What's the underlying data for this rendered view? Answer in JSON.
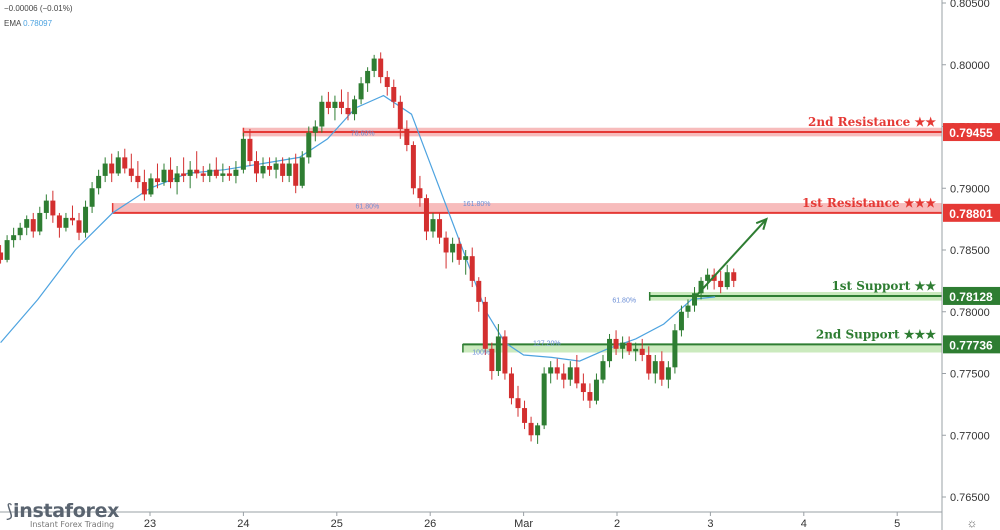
{
  "header": {
    "change_text": "−0.00006 (−0.01%)",
    "ema_label": "EMA",
    "ema_value": "0.78097"
  },
  "logo": {
    "name": "instaforex",
    "tagline": "Instant Forex Trading"
  },
  "settings_icon": "gear-icon",
  "colors": {
    "bull": "#26a69a",
    "bull_candle": "#2e7d32",
    "bear": "#d32f2f",
    "ema": "#4da3e0",
    "resistance_fill": "#f4a6a6",
    "resistance_line": "#e53935",
    "support_fill": "#b9e3a8",
    "support_line": "#2e7d32",
    "fib_text": "#6b8ed6"
  },
  "chart_data": {
    "type": "candlestick",
    "symbol_ema_period_unprinted": null,
    "y_axis": {
      "min": 0.765,
      "max": 0.805,
      "ticks": [
        "0.80500",
        "0.80000",
        "0.79500",
        "0.79000",
        "0.78500",
        "0.78000",
        "0.77500",
        "0.77000",
        "0.76500"
      ]
    },
    "x_axis": {
      "ticks": [
        "23",
        "24",
        "25",
        "26",
        "Mar",
        "2",
        "3",
        "4",
        "5"
      ],
      "tick_positions_days": [
        0,
        1,
        2,
        3,
        4,
        5,
        6,
        7,
        8
      ]
    },
    "levels": [
      {
        "label": "2nd Resistance ★★",
        "value": "0.79455",
        "price": 0.79455,
        "kind": "resistance",
        "zone": [
          0.7942,
          0.7949
        ],
        "start_day": 1.0
      },
      {
        "label": "1st Resistance ★★★",
        "value": "0.78801",
        "price": 0.78801,
        "kind": "resistance",
        "zone": [
          0.788,
          0.7888
        ],
        "start_day": -0.4
      },
      {
        "label": "1st Support ★★",
        "value": "0.78128",
        "price": 0.78128,
        "kind": "support",
        "zone": [
          0.7809,
          0.7816
        ],
        "start_day": 5.35
      },
      {
        "label": "2nd Support ★★★",
        "value": "0.77736",
        "price": 0.77736,
        "kind": "support",
        "zone": [
          0.7767,
          0.7774
        ],
        "start_day": 3.35
      }
    ],
    "fib_labels": [
      {
        "text": "78.60%",
        "day": 2.15,
        "price": 0.7945
      },
      {
        "text": "61.80%",
        "day": 2.2,
        "price": 0.7886
      },
      {
        "text": "161.80%",
        "day": 3.35,
        "price": 0.7888
      },
      {
        "text": "61.80%",
        "day": 4.95,
        "price": 0.781
      },
      {
        "text": "127.20%",
        "day": 4.1,
        "price": 0.7775
      },
      {
        "text": "100%",
        "day": 3.45,
        "price": 0.7768
      }
    ],
    "arrow": {
      "from": {
        "day": 5.85,
        "price": 0.7813
      },
      "to": {
        "day": 6.6,
        "price": 0.7875
      }
    },
    "ema": [
      [
        -1.6,
        0.7775
      ],
      [
        -1.2,
        0.781
      ],
      [
        -0.8,
        0.785
      ],
      [
        -0.4,
        0.788
      ],
      [
        0,
        0.79
      ],
      [
        0.4,
        0.7912
      ],
      [
        0.8,
        0.7915
      ],
      [
        1.2,
        0.792
      ],
      [
        1.6,
        0.7925
      ],
      [
        1.9,
        0.794
      ],
      [
        2.2,
        0.7965
      ],
      [
        2.5,
        0.7975
      ],
      [
        2.8,
        0.796
      ],
      [
        3.0,
        0.792
      ],
      [
        3.2,
        0.788
      ],
      [
        3.4,
        0.784
      ],
      [
        3.6,
        0.78
      ],
      [
        3.8,
        0.7775
      ],
      [
        4.0,
        0.7765
      ],
      [
        4.3,
        0.7763
      ],
      [
        4.6,
        0.776
      ],
      [
        4.9,
        0.777
      ],
      [
        5.2,
        0.7778
      ],
      [
        5.5,
        0.779
      ],
      [
        5.8,
        0.781
      ],
      [
        6.05,
        0.7812
      ]
    ],
    "candles": [
      [
        -1.6,
        0.7848,
        0.7854,
        0.7839,
        0.7842
      ],
      [
        -1.53,
        0.7842,
        0.7862,
        0.784,
        0.7858
      ],
      [
        -1.46,
        0.7858,
        0.7868,
        0.7852,
        0.7862
      ],
      [
        -1.39,
        0.7862,
        0.7872,
        0.7858,
        0.7868
      ],
      [
        -1.32,
        0.7868,
        0.7878,
        0.7862,
        0.7875
      ],
      [
        -1.25,
        0.7875,
        0.788,
        0.786,
        0.7865
      ],
      [
        -1.18,
        0.7865,
        0.7885,
        0.7862,
        0.788
      ],
      [
        -1.11,
        0.788,
        0.7895,
        0.7875,
        0.789
      ],
      [
        -1.04,
        0.789,
        0.7898,
        0.7872,
        0.7878
      ],
      [
        -0.97,
        0.7878,
        0.788,
        0.786,
        0.7868
      ],
      [
        -0.9,
        0.7868,
        0.788,
        0.7865,
        0.7876
      ],
      [
        -0.83,
        0.7876,
        0.7886,
        0.787,
        0.7874
      ],
      [
        -0.76,
        0.7874,
        0.788,
        0.7858,
        0.7864
      ],
      [
        -0.69,
        0.7864,
        0.789,
        0.786,
        0.7885
      ],
      [
        -0.62,
        0.7885,
        0.7905,
        0.788,
        0.79
      ],
      [
        -0.55,
        0.79,
        0.7915,
        0.7895,
        0.791
      ],
      [
        -0.48,
        0.791,
        0.7925,
        0.7905,
        0.792
      ],
      [
        -0.41,
        0.792,
        0.7928,
        0.7905,
        0.7912
      ],
      [
        -0.34,
        0.7912,
        0.793,
        0.791,
        0.7925
      ],
      [
        -0.27,
        0.7925,
        0.7932,
        0.7912,
        0.7916
      ],
      [
        -0.2,
        0.7916,
        0.7928,
        0.7905,
        0.791
      ],
      [
        -0.13,
        0.791,
        0.7922,
        0.79,
        0.7905
      ],
      [
        -0.06,
        0.7905,
        0.7915,
        0.789,
        0.7895
      ],
      [
        0.01,
        0.7895,
        0.7912,
        0.7893,
        0.7908
      ],
      [
        0.08,
        0.7908,
        0.792,
        0.79,
        0.7905
      ],
      [
        0.15,
        0.7905,
        0.792,
        0.7902,
        0.7915
      ],
      [
        0.22,
        0.7915,
        0.7925,
        0.79,
        0.7905
      ],
      [
        0.29,
        0.7905,
        0.7918,
        0.7895,
        0.7912
      ],
      [
        0.36,
        0.7912,
        0.7925,
        0.7905,
        0.791
      ],
      [
        0.43,
        0.791,
        0.7922,
        0.79,
        0.7915
      ],
      [
        0.5,
        0.7915,
        0.793,
        0.7908,
        0.7912
      ],
      [
        0.57,
        0.7912,
        0.7918,
        0.7905,
        0.791
      ],
      [
        0.64,
        0.791,
        0.792,
        0.7905,
        0.7915
      ],
      [
        0.71,
        0.7915,
        0.7925,
        0.7908,
        0.791
      ],
      [
        0.78,
        0.791,
        0.792,
        0.7905,
        0.7912
      ],
      [
        0.85,
        0.7912,
        0.7918,
        0.7906,
        0.791
      ],
      [
        0.92,
        0.791,
        0.7922,
        0.7904,
        0.7915
      ],
      [
        1.0,
        0.7915,
        0.7945,
        0.7912,
        0.794
      ],
      [
        1.07,
        0.794,
        0.7948,
        0.7918,
        0.7922
      ],
      [
        1.14,
        0.7922,
        0.793,
        0.7905,
        0.7912
      ],
      [
        1.21,
        0.7912,
        0.7925,
        0.7908,
        0.7918
      ],
      [
        1.28,
        0.7918,
        0.7925,
        0.791,
        0.7915
      ],
      [
        1.35,
        0.7915,
        0.7925,
        0.7908,
        0.792
      ],
      [
        1.42,
        0.792,
        0.7925,
        0.7905,
        0.791
      ],
      [
        1.49,
        0.791,
        0.7925,
        0.7905,
        0.792
      ],
      [
        1.56,
        0.792,
        0.7928,
        0.7896,
        0.7902
      ],
      [
        1.63,
        0.7902,
        0.793,
        0.79,
        0.7925
      ],
      [
        1.7,
        0.7925,
        0.795,
        0.792,
        0.7945
      ],
      [
        1.77,
        0.7945,
        0.7955,
        0.7938,
        0.795
      ],
      [
        1.84,
        0.795,
        0.7975,
        0.7945,
        0.797
      ],
      [
        1.91,
        0.797,
        0.7978,
        0.796,
        0.7965
      ],
      [
        1.98,
        0.7965,
        0.7975,
        0.7955,
        0.797
      ],
      [
        2.05,
        0.797,
        0.798,
        0.796,
        0.7965
      ],
      [
        2.12,
        0.7965,
        0.7978,
        0.7955,
        0.796
      ],
      [
        2.19,
        0.796,
        0.7975,
        0.7955,
        0.7972
      ],
      [
        2.26,
        0.7972,
        0.799,
        0.7968,
        0.7985
      ],
      [
        2.33,
        0.7985,
        0.7998,
        0.7978,
        0.7995
      ],
      [
        2.4,
        0.7995,
        0.8008,
        0.799,
        0.8005
      ],
      [
        2.47,
        0.8005,
        0.801,
        0.7985,
        0.799
      ],
      [
        2.54,
        0.799,
        0.7995,
        0.7975,
        0.7982
      ],
      [
        2.61,
        0.7982,
        0.7988,
        0.7965,
        0.797
      ],
      [
        2.68,
        0.797,
        0.7975,
        0.794,
        0.7948
      ],
      [
        2.75,
        0.7948,
        0.7955,
        0.793,
        0.7935
      ],
      [
        2.82,
        0.7935,
        0.7938,
        0.7895,
        0.79
      ],
      [
        2.89,
        0.79,
        0.791,
        0.7885,
        0.7892
      ],
      [
        2.96,
        0.7892,
        0.7895,
        0.7858,
        0.7865
      ],
      [
        3.03,
        0.7865,
        0.788,
        0.786,
        0.7875
      ],
      [
        3.1,
        0.7875,
        0.788,
        0.7855,
        0.786
      ],
      [
        3.17,
        0.786,
        0.7865,
        0.7835,
        0.7848
      ],
      [
        3.24,
        0.7848,
        0.786,
        0.784,
        0.7855
      ],
      [
        3.31,
        0.7855,
        0.786,
        0.7838,
        0.7842
      ],
      [
        3.38,
        0.7842,
        0.785,
        0.783,
        0.7845
      ],
      [
        3.45,
        0.7845,
        0.7852,
        0.782,
        0.7825
      ],
      [
        3.52,
        0.7825,
        0.7828,
        0.78,
        0.7808
      ],
      [
        3.59,
        0.7808,
        0.7812,
        0.7765,
        0.777
      ],
      [
        3.66,
        0.777,
        0.7775,
        0.7745,
        0.7752
      ],
      [
        3.73,
        0.7752,
        0.779,
        0.7748,
        0.778
      ],
      [
        3.8,
        0.778,
        0.7785,
        0.7745,
        0.775
      ],
      [
        3.87,
        0.775,
        0.7755,
        0.7725,
        0.773
      ],
      [
        3.94,
        0.773,
        0.774,
        0.7715,
        0.7722
      ],
      [
        4.01,
        0.7722,
        0.7728,
        0.7705,
        0.771
      ],
      [
        4.08,
        0.771,
        0.7715,
        0.7695,
        0.77
      ],
      [
        4.15,
        0.77,
        0.771,
        0.7693,
        0.7708
      ],
      [
        4.22,
        0.7708,
        0.7755,
        0.7705,
        0.775
      ],
      [
        4.29,
        0.775,
        0.776,
        0.7742,
        0.7755
      ],
      [
        4.36,
        0.7755,
        0.7762,
        0.7745,
        0.775
      ],
      [
        4.43,
        0.775,
        0.7758,
        0.7738,
        0.7745
      ],
      [
        4.5,
        0.7745,
        0.776,
        0.774,
        0.7755
      ],
      [
        4.57,
        0.7755,
        0.7765,
        0.7738,
        0.7742
      ],
      [
        4.64,
        0.7742,
        0.775,
        0.7728,
        0.7735
      ],
      [
        4.71,
        0.7735,
        0.7742,
        0.7722,
        0.7728
      ],
      [
        4.78,
        0.7728,
        0.775,
        0.7725,
        0.7745
      ],
      [
        4.85,
        0.7745,
        0.7765,
        0.7742,
        0.776
      ],
      [
        4.92,
        0.776,
        0.7782,
        0.7755,
        0.7778
      ],
      [
        4.99,
        0.7778,
        0.7785,
        0.7765,
        0.777
      ],
      [
        5.06,
        0.777,
        0.778,
        0.7762,
        0.7775
      ],
      [
        5.13,
        0.7775,
        0.778,
        0.7765,
        0.7768
      ],
      [
        5.2,
        0.7768,
        0.7775,
        0.776,
        0.777
      ],
      [
        5.27,
        0.777,
        0.7778,
        0.776,
        0.7765
      ],
      [
        5.34,
        0.7765,
        0.7772,
        0.7745,
        0.775
      ],
      [
        5.41,
        0.775,
        0.7765,
        0.7742,
        0.776
      ],
      [
        5.48,
        0.776,
        0.7768,
        0.774,
        0.7745
      ],
      [
        5.55,
        0.7745,
        0.776,
        0.7738,
        0.7755
      ],
      [
        5.62,
        0.7755,
        0.779,
        0.775,
        0.7785
      ],
      [
        5.69,
        0.7785,
        0.7805,
        0.778,
        0.78
      ],
      [
        5.76,
        0.78,
        0.781,
        0.7795,
        0.7805
      ],
      [
        5.83,
        0.7805,
        0.782,
        0.78,
        0.7815
      ],
      [
        5.9,
        0.7815,
        0.7828,
        0.781,
        0.7825
      ],
      [
        5.97,
        0.7825,
        0.7835,
        0.7818,
        0.783
      ],
      [
        6.04,
        0.783,
        0.7835,
        0.7818,
        0.7825
      ],
      [
        6.11,
        0.7825,
        0.7833,
        0.7815,
        0.782
      ],
      [
        6.18,
        0.782,
        0.7838,
        0.7818,
        0.7832
      ],
      [
        6.25,
        0.7832,
        0.7835,
        0.782,
        0.7825
      ]
    ]
  }
}
